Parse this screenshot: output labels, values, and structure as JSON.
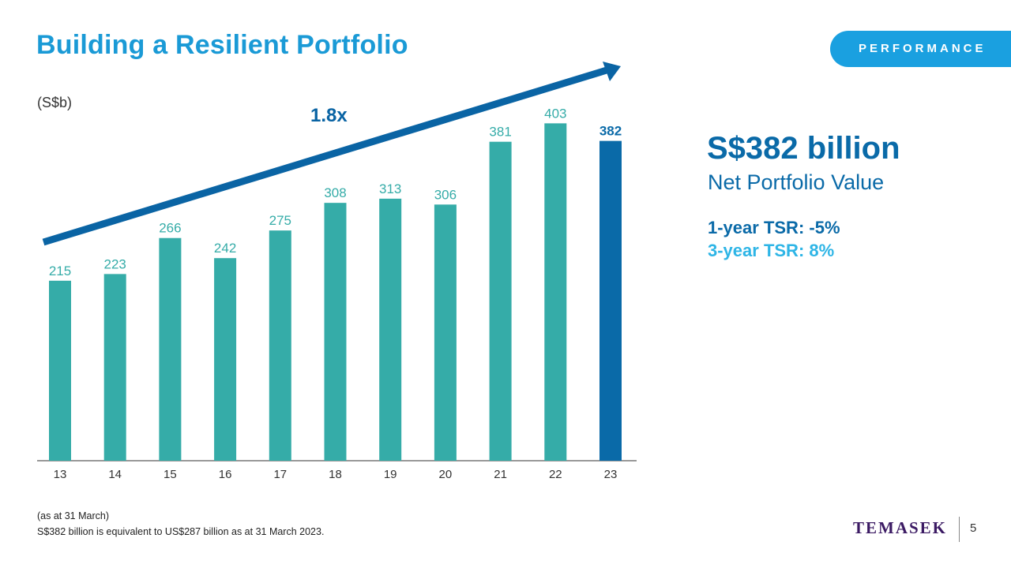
{
  "header": {
    "title": "Building a Resilient Portfolio",
    "badge": "PERFORMANCE"
  },
  "chart_data": {
    "type": "bar",
    "unit_label": "(S$b)",
    "categories": [
      "13",
      "14",
      "15",
      "16",
      "17",
      "18",
      "19",
      "20",
      "21",
      "22",
      "23"
    ],
    "values": [
      215,
      223,
      266,
      242,
      275,
      308,
      313,
      306,
      381,
      403,
      382
    ],
    "value_labels": [
      "215",
      "223",
      "266",
      "242",
      "275",
      "308",
      "313",
      "306",
      "381",
      "403",
      "382"
    ],
    "ylim": [
      0,
      425
    ],
    "grid": false,
    "annotation": "1.8x",
    "colors": {
      "bar": "#35aca8",
      "highlight": "#0a6aa8",
      "arrow": "#0a64a4",
      "axis": "#333333"
    },
    "highlight_index": 10
  },
  "kpi": {
    "value": "S$382 billion",
    "label": "Net Portfolio Value",
    "tsr_1y": "1-year TSR: -5%",
    "tsr_3y": "3-year TSR: 8%"
  },
  "footer": {
    "note_date": "(as at 31 March)",
    "note_conversion": "S$382 billion is equivalent to US$287 billion as at 31 March 2023.",
    "logo": "TEMASEK",
    "page": "5"
  }
}
